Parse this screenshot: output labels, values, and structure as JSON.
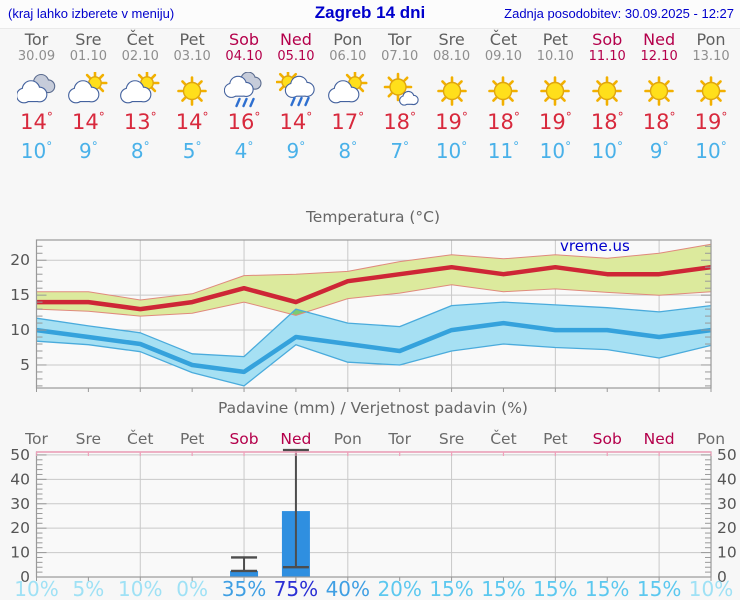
{
  "header": {
    "hint": "(kraj lahko izberete v meniju)",
    "title": "Zagreb 14 dni",
    "updated": "Zadnja posodobitev: 30.09.2025 - 12:27"
  },
  "days": [
    {
      "name": "Tor",
      "date": "30.09",
      "weekend": false,
      "icon": "cloudy",
      "tmax": "14",
      "tmin": "10"
    },
    {
      "name": "Sre",
      "date": "01.10",
      "weekend": false,
      "icon": "partly-cloudy",
      "tmax": "14",
      "tmin": "9"
    },
    {
      "name": "Čet",
      "date": "02.10",
      "weekend": false,
      "icon": "partly-cloudy",
      "tmax": "13",
      "tmin": "8"
    },
    {
      "name": "Pet",
      "date": "03.10",
      "weekend": false,
      "icon": "sunny",
      "tmax": "14",
      "tmin": "5"
    },
    {
      "name": "Sob",
      "date": "04.10",
      "weekend": true,
      "icon": "rain",
      "tmax": "16",
      "tmin": "4"
    },
    {
      "name": "Ned",
      "date": "05.10",
      "weekend": true,
      "icon": "sun-rain",
      "tmax": "14",
      "tmin": "9"
    },
    {
      "name": "Pon",
      "date": "06.10",
      "weekend": false,
      "icon": "partly-cloudy",
      "tmax": "17",
      "tmin": "8"
    },
    {
      "name": "Tor",
      "date": "07.10",
      "weekend": false,
      "icon": "mostly-sunny",
      "tmax": "18",
      "tmin": "7"
    },
    {
      "name": "Sre",
      "date": "08.10",
      "weekend": false,
      "icon": "sunny",
      "tmax": "19",
      "tmin": "10"
    },
    {
      "name": "Čet",
      "date": "09.10",
      "weekend": false,
      "icon": "sunny",
      "tmax": "18",
      "tmin": "11"
    },
    {
      "name": "Pet",
      "date": "10.10",
      "weekend": false,
      "icon": "sunny",
      "tmax": "19",
      "tmin": "10"
    },
    {
      "name": "Sob",
      "date": "11.10",
      "weekend": true,
      "icon": "sunny",
      "tmax": "18",
      "tmin": "10"
    },
    {
      "name": "Ned",
      "date": "12.10",
      "weekend": true,
      "icon": "sunny",
      "tmax": "18",
      "tmin": "9"
    },
    {
      "name": "Pon",
      "date": "13.10",
      "weekend": false,
      "icon": "sunny",
      "tmax": "19",
      "tmin": "10"
    }
  ],
  "chart_data": [
    {
      "type": "line",
      "title": "Temperatura (°C)",
      "watermark": "vreme.us",
      "categories": [
        "Tor 30.09",
        "Sre 01.10",
        "Čet 02.10",
        "Pet 03.10",
        "Sob 04.10",
        "Ned 05.10",
        "Pon 06.10",
        "Tor 07.10",
        "Sre 08.10",
        "Čet 09.10",
        "Pet 10.10",
        "Sob 11.10",
        "Ned 12.10",
        "Pon 13.10"
      ],
      "series": [
        {
          "name": "max temperature",
          "values": [
            14,
            14,
            13,
            14,
            16,
            14,
            17,
            18,
            19,
            18,
            19,
            18,
            18,
            19
          ]
        },
        {
          "name": "max temp band upper",
          "values": [
            15.5,
            15.5,
            14.3,
            15.2,
            17.8,
            18,
            18.4,
            19.8,
            20.8,
            20.2,
            20.8,
            20.3,
            21,
            22.3
          ]
        },
        {
          "name": "max temp band lower",
          "values": [
            13,
            12.7,
            12,
            12.4,
            14,
            12.1,
            14.5,
            15.3,
            16.5,
            15.5,
            15.9,
            15.4,
            15,
            15.5
          ]
        },
        {
          "name": "min temperature",
          "values": [
            10,
            9,
            8,
            5,
            4,
            9,
            8,
            7,
            10,
            11,
            10,
            10,
            9,
            10
          ]
        },
        {
          "name": "min temp band upper",
          "values": [
            11.7,
            10.6,
            9.6,
            6.6,
            6.2,
            13,
            11,
            10.5,
            13.5,
            14,
            13.6,
            13.2,
            12.6,
            13.5
          ]
        },
        {
          "name": "min temp band lower",
          "values": [
            8.4,
            7.9,
            6.9,
            3.9,
            2,
            7.9,
            5.4,
            5,
            7,
            8,
            7.5,
            7.2,
            6,
            7.8
          ]
        }
      ],
      "yticks": [
        5,
        10,
        15,
        20
      ],
      "ylim": [
        1.7,
        22.9
      ],
      "grid": true,
      "legend_position": "none"
    },
    {
      "type": "bar",
      "title": "Padavine (mm) / Verjetnost padavin (%)",
      "categories": [
        "Tor",
        "Sre",
        "Čet",
        "Pet",
        "Sob",
        "Ned",
        "Pon",
        "Tor",
        "Sre",
        "Čet",
        "Pet",
        "Sob",
        "Ned",
        "Pon"
      ],
      "weekend_flags": [
        false,
        false,
        false,
        false,
        true,
        true,
        false,
        false,
        false,
        false,
        false,
        true,
        true,
        false
      ],
      "values_mm": [
        0,
        0,
        0,
        0,
        2.5,
        27,
        0,
        0,
        0,
        0,
        0,
        0,
        0,
        0
      ],
      "whisker_ranges_mm": [
        null,
        null,
        null,
        null,
        [
          2.5,
          8
        ],
        [
          4,
          52
        ],
        null,
        null,
        null,
        null,
        null,
        null,
        null,
        null
      ],
      "probability_pct": [
        10,
        5,
        10,
        0,
        35,
        75,
        40,
        20,
        15,
        15,
        15,
        15,
        15,
        10
      ],
      "yticks": [
        0,
        10,
        20,
        30,
        40,
        50
      ],
      "ylim": [
        0,
        51.2
      ],
      "grid": true
    }
  ],
  "colors": {
    "header_blue": "#0000cc",
    "weekend_accent": "#b4004b",
    "day_name": "#5f5f5f",
    "day_date": "#8e8e8e",
    "temp_high": "#d8293d",
    "temp_low": "#49b1e9",
    "tmax_line": "#ce2636",
    "tmin_line": "#35a2dc",
    "tmax_band": "#dcea9d",
    "tmax_band_edge": "#e08a7d",
    "tmin_band": "#a6e0f3",
    "tmin_band_edge": "#4aabdc",
    "band_overlap": "#7ccb70",
    "rain_bar": "#2f8fe0",
    "whisker": "#4d4d4d",
    "prob_low": "#9fe1f5",
    "prob_mid": "#5cc8ef",
    "prob_high": "#3f9fe3",
    "prob_max": "#2a2fd4",
    "grid": "#c9c9c9",
    "frame": "#999999",
    "axis_text": "#555555",
    "title_text": "#666666",
    "top_axis_pink": "#f0a0ba",
    "plot_bg": "#f9f9f9",
    "watermark": "#0000cc"
  }
}
